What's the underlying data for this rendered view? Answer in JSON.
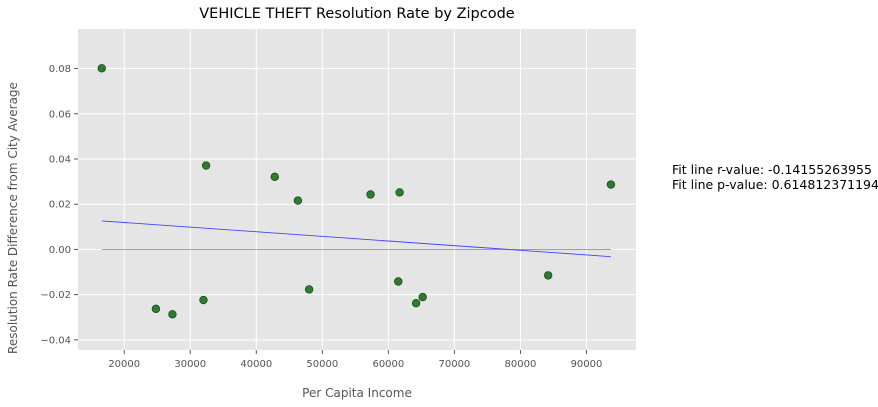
{
  "chart_data": {
    "type": "scatter",
    "title": "VEHICLE THEFT Resolution Rate by Zipcode",
    "xlabel": "Per Capita Income",
    "ylabel": "Resolution Rate Difference from City Average",
    "xlim": [
      13000,
      97500
    ],
    "ylim": [
      -0.0445,
      0.0975
    ],
    "x_ticks": [
      20000,
      30000,
      40000,
      50000,
      60000,
      70000,
      80000,
      90000
    ],
    "y_ticks": [
      -0.04,
      -0.02,
      0.0,
      0.02,
      0.04,
      0.06,
      0.08
    ],
    "y_tick_labels": [
      "−0.04",
      "−0.02",
      "0.00",
      "0.02",
      "0.04",
      "0.06",
      "0.08"
    ],
    "grid": true,
    "points": [
      {
        "x": 16600,
        "y": 0.0801
      },
      {
        "x": 24800,
        "y": -0.0263
      },
      {
        "x": 27300,
        "y": -0.0287
      },
      {
        "x": 32000,
        "y": -0.0224
      },
      {
        "x": 32400,
        "y": 0.0371
      },
      {
        "x": 42800,
        "y": 0.0321
      },
      {
        "x": 46300,
        "y": 0.0216
      },
      {
        "x": 48000,
        "y": -0.0177
      },
      {
        "x": 57300,
        "y": 0.0243
      },
      {
        "x": 61500,
        "y": -0.0142
      },
      {
        "x": 61700,
        "y": 0.0252
      },
      {
        "x": 64200,
        "y": -0.0238
      },
      {
        "x": 65200,
        "y": -0.0211
      },
      {
        "x": 84200,
        "y": -0.0115
      },
      {
        "x": 93700,
        "y": 0.0287
      }
    ],
    "fit_line": {
      "x": [
        16600,
        93700
      ],
      "y": [
        0.0126,
        -0.0032
      ]
    },
    "zero_line": {
      "x": [
        16600,
        93700
      ],
      "y": [
        0,
        0
      ]
    },
    "annotations": [
      "Fit line r-value: -0.14155263955",
      "Fit line p-value: 0.614812371194"
    ],
    "colors": {
      "background": "#e5e5e5",
      "grid": "#ffffff",
      "point_fill": "#2e7d2e",
      "point_edge": "#1a4d1a",
      "fit_line": "#4444ff",
      "zero_line": "#ff6666"
    }
  }
}
